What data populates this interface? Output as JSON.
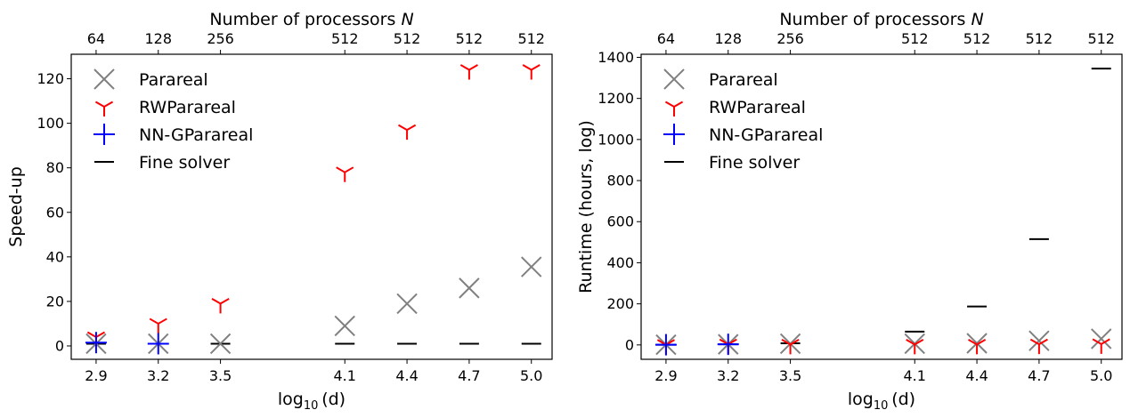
{
  "chart_data": [
    {
      "type": "scatter",
      "title": "",
      "xlabel": "log",
      "xlabel_sub": "10",
      "xlabel_arg": "(d)",
      "ylabel": "Speed-up",
      "top_xlabel": "Number of processors",
      "top_xlabel_var": "N",
      "x": [
        2.9,
        3.2,
        3.5,
        4.1,
        4.4,
        4.7,
        5.0
      ],
      "x_tick_labels": [
        "2.9",
        "3.2",
        "3.5",
        "4.1",
        "4.4",
        "4.7",
        "5.0"
      ],
      "top_tick_labels": [
        "64",
        "128",
        "256",
        "512",
        "512",
        "512",
        "512"
      ],
      "yticks": [
        0,
        20,
        40,
        60,
        80,
        100,
        120
      ],
      "ylim": [
        -6,
        131
      ],
      "grid": false,
      "legend": "top-left",
      "series": [
        {
          "name": "Parareal",
          "marker": "x",
          "color": "#808080",
          "values": [
            1,
            1,
            1,
            9,
            19,
            26,
            35.5
          ]
        },
        {
          "name": "RWParareal",
          "marker": "tri_down",
          "color": "#ff0000",
          "values": [
            4,
            10,
            19,
            78,
            97,
            124,
            124
          ]
        },
        {
          "name": "NN-GParareal",
          "marker": "plus",
          "color": "#0000ff",
          "values": [
            1.5,
            1,
            null,
            null,
            null,
            null,
            null
          ]
        },
        {
          "name": "Fine solver",
          "marker": "hline",
          "color": "#000000",
          "values": [
            1,
            1,
            1,
            1,
            1,
            1,
            1
          ]
        }
      ]
    },
    {
      "type": "scatter",
      "title": "",
      "xlabel": "log",
      "xlabel_sub": "10",
      "xlabel_arg": "(d)",
      "ylabel": "Runtime (hours, log)",
      "top_xlabel": "Number of processors",
      "top_xlabel_var": "N",
      "x": [
        2.9,
        3.2,
        3.5,
        4.1,
        4.4,
        4.7,
        5.0
      ],
      "x_tick_labels": [
        "2.9",
        "3.2",
        "3.5",
        "4.1",
        "4.4",
        "4.7",
        "5.0"
      ],
      "top_tick_labels": [
        "64",
        "128",
        "256",
        "512",
        "512",
        "512",
        "512"
      ],
      "yticks": [
        0,
        200,
        400,
        600,
        800,
        1000,
        1200,
        1400
      ],
      "ylim": [
        -70,
        1415
      ],
      "grid": false,
      "legend": "top-left",
      "series": [
        {
          "name": "Parareal",
          "marker": "x",
          "color": "#808080",
          "values": [
            1,
            3,
            6,
            6,
            8,
            20,
            30
          ]
        },
        {
          "name": "RWParareal",
          "marker": "tri_down",
          "color": "#ff0000",
          "values": [
            1,
            3,
            2,
            2,
            2,
            3,
            4
          ]
        },
        {
          "name": "NN-GParareal",
          "marker": "plus",
          "color": "#0000ff",
          "values": [
            1,
            3,
            null,
            null,
            null,
            null,
            null
          ]
        },
        {
          "name": "Fine solver",
          "marker": "hline",
          "color": "#000000",
          "values": [
            1,
            3,
            8,
            65,
            187,
            515,
            1345
          ]
        }
      ]
    }
  ]
}
